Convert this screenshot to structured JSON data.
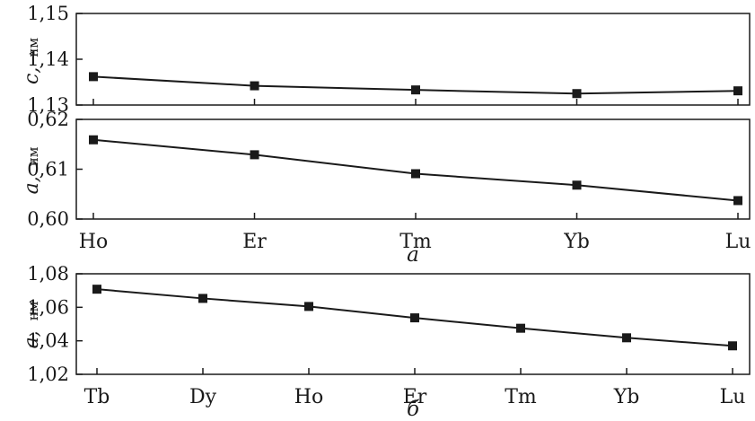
{
  "chart_data": [
    {
      "type": "line",
      "panel": "a-top",
      "categories": [
        "Ho",
        "Er",
        "Tm",
        "Yb",
        "Lu"
      ],
      "series": [
        {
          "values": [
            1.1362,
            1.1342,
            1.1333,
            1.1325,
            1.1331
          ]
        }
      ],
      "ylabel": "c,",
      "ylabel_unit": "нм",
      "ylim": [
        1.13,
        1.15
      ],
      "yticks": [
        "1,13",
        "1,14",
        "1,15"
      ],
      "grid": false,
      "marker": "square",
      "color": "#1a1a1a"
    },
    {
      "type": "line",
      "panel": "a-bottom",
      "categories": [
        "Ho",
        "Er",
        "Tm",
        "Yb",
        "Lu"
      ],
      "series": [
        {
          "values": [
            0.6159,
            0.6129,
            0.6091,
            0.6068,
            0.6037
          ]
        }
      ],
      "ylabel": "a,",
      "ylabel_unit": "нм",
      "ylim": [
        0.6,
        0.62
      ],
      "yticks": [
        "0,60",
        "0,61",
        "0,62"
      ],
      "xticklabels": [
        "Ho",
        "Er",
        "Tm",
        "Yb",
        "Lu"
      ],
      "caption": "а",
      "grid": false,
      "marker": "square",
      "color": "#1a1a1a"
    },
    {
      "type": "line",
      "panel": "b",
      "categories": [
        "Tb",
        "Dy",
        "Ho",
        "Er",
        "Tm",
        "Yb",
        "Lu"
      ],
      "series": [
        {
          "values": [
            1.0708,
            1.0653,
            1.0605,
            1.0537,
            1.0475,
            1.0418,
            1.037
          ]
        }
      ],
      "ylabel": "a,",
      "ylabel_unit": "нм",
      "ylim": [
        1.02,
        1.08
      ],
      "yticks": [
        "1,02",
        "1,04",
        "1,06",
        "1,08"
      ],
      "xticklabels": [
        "Tb",
        "Dy",
        "Ho",
        "Er",
        "Tm",
        "Yb",
        "Lu"
      ],
      "caption": "б",
      "grid": false,
      "marker": "square",
      "color": "#1a1a1a"
    }
  ]
}
